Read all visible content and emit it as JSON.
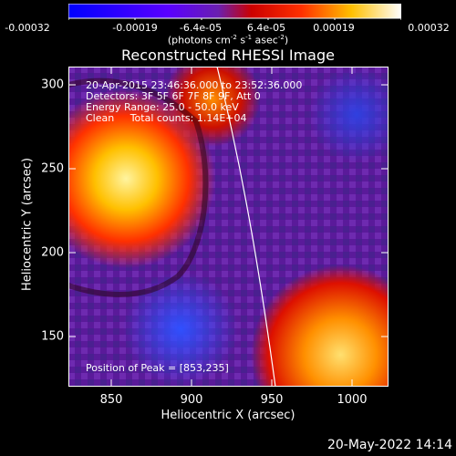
{
  "colorbar": {
    "ticks": [
      "-0.00032",
      "-0.00019",
      "-6.4e-05",
      "6.4e-05",
      "0.00019",
      "0.00032"
    ],
    "units_prefix": "(photons cm",
    "units_exp1": "-2",
    "units_mid": " s",
    "units_exp2": "-1",
    "units_mid2": " asec",
    "units_exp3": "-2",
    "units_suffix": ")",
    "colors": [
      "#0000ff",
      "#7a00ff",
      "#ff0000",
      "#ffa000",
      "#ffffff"
    ]
  },
  "plot": {
    "title": "Reconstructed RHESSI Image",
    "x_label": "Heliocentric X (arcsec)",
    "y_label": "Heliocentric Y (arcsec)",
    "x_ticks": [
      "850",
      "900",
      "950",
      "1000"
    ],
    "y_ticks": [
      "300",
      "250",
      "200",
      "150"
    ],
    "info_line1": "20-Apr-2015 23:46:36.000 to 23:52:36.000",
    "info_line2": "Detectors: 3F 5F 6F 7F 8F 9F, Att 0",
    "info_line3": "Energy Range: 25.0 - 50.0 keV",
    "info_line4": "Clean     Total counts: 1.14E+04",
    "peak_label": "Position of Peak = [853,235]"
  },
  "footer": {
    "date": "20-May-2022 14:14"
  }
}
